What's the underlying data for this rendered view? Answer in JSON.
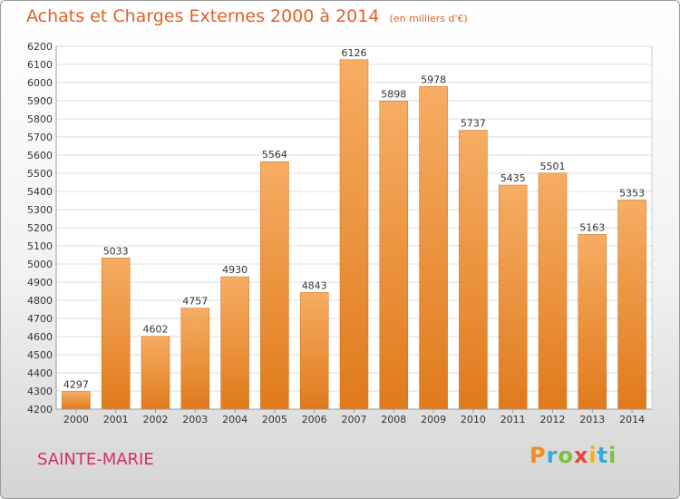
{
  "header": {
    "title": "Achats et Charges Externes 2000 à 2014",
    "unit": "(en milliers d'€)"
  },
  "footer": {
    "city": "SAINTE-MARIE",
    "logo_text": "Proxiti",
    "logo_colors": [
      "#f28c28",
      "#39a9dc",
      "#7cbf3c",
      "#e8473a",
      "#f2b21b",
      "#39a9dc",
      "#7cbf3c"
    ]
  },
  "colors": {
    "bar_light": "#f6ad63",
    "bar_dark": "#e07a1c",
    "title": "#e0602a",
    "city": "#d62e5f"
  },
  "chart_data": {
    "type": "bar",
    "title": "Achats et Charges Externes 2000 à 2014",
    "subtitle": "(en milliers d'€)",
    "xlabel": "",
    "ylabel": "",
    "categories": [
      "2000",
      "2001",
      "2002",
      "2003",
      "2004",
      "2005",
      "2006",
      "2007",
      "2008",
      "2009",
      "2010",
      "2011",
      "2012",
      "2013",
      "2014"
    ],
    "values": [
      4297,
      5033,
      4602,
      4757,
      4930,
      5564,
      4843,
      6126,
      5898,
      5978,
      5737,
      5435,
      5501,
      5163,
      5353
    ],
    "ylim": [
      4200,
      6200
    ],
    "yticks": [
      4200,
      4300,
      4400,
      4500,
      4600,
      4700,
      4800,
      4900,
      5000,
      5100,
      5200,
      5300,
      5400,
      5500,
      5600,
      5700,
      5800,
      5900,
      6000,
      6100,
      6200
    ],
    "grid": true,
    "legend": "none"
  }
}
